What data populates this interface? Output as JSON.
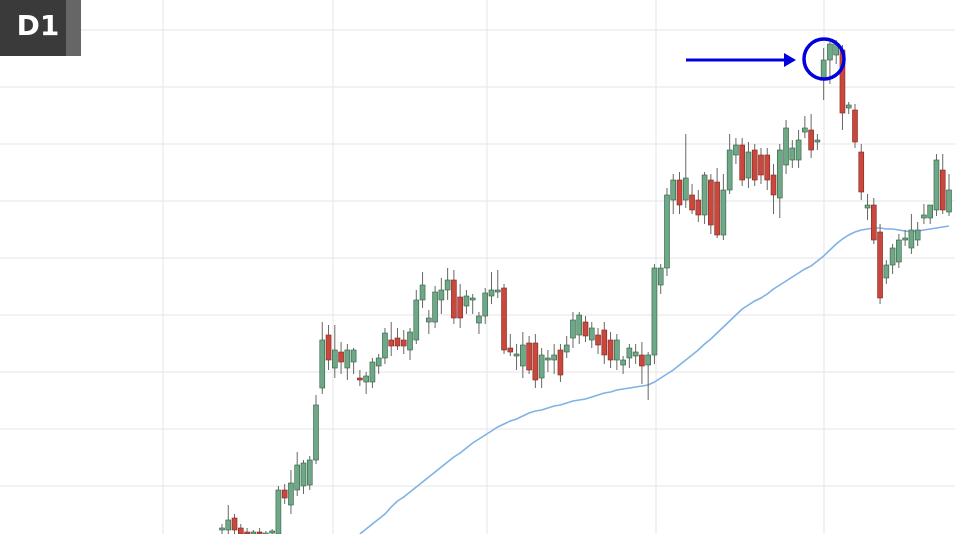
{
  "chart_data": {
    "type": "candlestick",
    "title": "D1",
    "ylim": [
      0,
      534
    ],
    "up_color": "#6fa886",
    "down_color": "#c9473c",
    "candles": [
      [
        4,
        10,
        0,
        6
      ],
      [
        4,
        29,
        0,
        14
      ],
      [
        16,
        20,
        0,
        4
      ],
      [
        6,
        10,
        0,
        0
      ],
      [
        2,
        6,
        0,
        0
      ],
      [
        0,
        4,
        0,
        2
      ],
      [
        2,
        6,
        0,
        0
      ],
      [
        0,
        3,
        0,
        1
      ],
      [
        1,
        5,
        0,
        3
      ],
      [
        0,
        48,
        0,
        44
      ],
      [
        44,
        50,
        30,
        36
      ],
      [
        29,
        64,
        20,
        51
      ],
      [
        44,
        82,
        38,
        69
      ],
      [
        48,
        74,
        40,
        71
      ],
      [
        49,
        78,
        44,
        74
      ],
      [
        74,
        139,
        70,
        129
      ],
      [
        146,
        212,
        140,
        194
      ],
      [
        199,
        209,
        164,
        174
      ],
      [
        166,
        209,
        156,
        184
      ],
      [
        182,
        192,
        160,
        172
      ],
      [
        166,
        190,
        154,
        184
      ],
      [
        172,
        186,
        160,
        184
      ],
      [
        156,
        164,
        148,
        154
      ],
      [
        152,
        162,
        140,
        158
      ],
      [
        152,
        176,
        146,
        172
      ],
      [
        168,
        180,
        160,
        176
      ],
      [
        176,
        206,
        170,
        201
      ],
      [
        194,
        212,
        178,
        188
      ],
      [
        196,
        206,
        184,
        188
      ],
      [
        194,
        204,
        180,
        188
      ],
      [
        184,
        206,
        174,
        202
      ],
      [
        194,
        244,
        190,
        234
      ],
      [
        234,
        262,
        226,
        249
      ],
      [
        212,
        224,
        200,
        216
      ],
      [
        212,
        248,
        206,
        242
      ],
      [
        234,
        256,
        220,
        244
      ],
      [
        244,
        266,
        234,
        254
      ],
      [
        254,
        264,
        210,
        216
      ],
      [
        237,
        250,
        206,
        216
      ],
      [
        228,
        244,
        220,
        238
      ],
      [
        234,
        240,
        220,
        236
      ],
      [
        211,
        222,
        200,
        218
      ],
      [
        218,
        246,
        210,
        241
      ],
      [
        238,
        262,
        230,
        244
      ],
      [
        242,
        264,
        236,
        244
      ],
      [
        246,
        250,
        180,
        184
      ],
      [
        186,
        200,
        178,
        182
      ],
      [
        178,
        190,
        164,
        180
      ],
      [
        168,
        202,
        156,
        189
      ],
      [
        191,
        198,
        160,
        164
      ],
      [
        191,
        200,
        146,
        154
      ],
      [
        156,
        186,
        146,
        179
      ],
      [
        174,
        184,
        162,
        176
      ],
      [
        174,
        190,
        160,
        179
      ],
      [
        184,
        190,
        152,
        159
      ],
      [
        182,
        198,
        176,
        189
      ],
      [
        196,
        222,
        186,
        214
      ],
      [
        199,
        222,
        190,
        219
      ],
      [
        212,
        218,
        192,
        198
      ],
      [
        194,
        212,
        186,
        206
      ],
      [
        199,
        206,
        180,
        189
      ],
      [
        204,
        212,
        170,
        179
      ],
      [
        194,
        202,
        166,
        174
      ],
      [
        174,
        200,
        164,
        194
      ],
      [
        169,
        178,
        160,
        174
      ],
      [
        176,
        190,
        166,
        186
      ],
      [
        178,
        190,
        170,
        182
      ],
      [
        179,
        192,
        150,
        168
      ],
      [
        169,
        182,
        134,
        179
      ],
      [
        179,
        270,
        170,
        266
      ],
      [
        249,
        270,
        240,
        266
      ],
      [
        266,
        346,
        258,
        339
      ],
      [
        334,
        360,
        320,
        354
      ],
      [
        354,
        362,
        320,
        329
      ],
      [
        334,
        400,
        326,
        356
      ],
      [
        339,
        350,
        320,
        324
      ],
      [
        334,
        344,
        312,
        319
      ],
      [
        319,
        362,
        310,
        359
      ],
      [
        354,
        360,
        300,
        309
      ],
      [
        352,
        366,
        296,
        299
      ],
      [
        299,
        360,
        294,
        344
      ],
      [
        344,
        400,
        340,
        384
      ],
      [
        379,
        396,
        370,
        389
      ],
      [
        389,
        396,
        348,
        354
      ],
      [
        356,
        392,
        346,
        382
      ],
      [
        384,
        390,
        348,
        354
      ],
      [
        379,
        386,
        350,
        359
      ],
      [
        379,
        386,
        344,
        354
      ],
      [
        359,
        370,
        320,
        339
      ],
      [
        336,
        390,
        316,
        384
      ],
      [
        369,
        414,
        360,
        406
      ],
      [
        374,
        394,
        366,
        386
      ],
      [
        374,
        404,
        366,
        394
      ],
      [
        402,
        418,
        396,
        406
      ],
      [
        404,
        420,
        376,
        384
      ],
      [
        392,
        400,
        384,
        394
      ],
      [
        456,
        486,
        434,
        474
      ],
      [
        474,
        492,
        450,
        490
      ],
      [
        479,
        494,
        470,
        490
      ],
      [
        484,
        489,
        404,
        421
      ],
      [
        426,
        432,
        420,
        429
      ],
      [
        424,
        430,
        386,
        392
      ],
      [
        382,
        390,
        334,
        342
      ],
      [
        326,
        340,
        314,
        329
      ],
      [
        329,
        336,
        290,
        294
      ],
      [
        302,
        310,
        230,
        236
      ],
      [
        256,
        274,
        250,
        269
      ],
      [
        269,
        290,
        260,
        286
      ],
      [
        272,
        300,
        266,
        294
      ],
      [
        294,
        304,
        288,
        296
      ],
      [
        286,
        320,
        280,
        304
      ],
      [
        294,
        312,
        288,
        304
      ],
      [
        316,
        330,
        310,
        319
      ],
      [
        316,
        328,
        310,
        329
      ],
      [
        324,
        380,
        318,
        374
      ],
      [
        364,
        380,
        320,
        324
      ],
      [
        322,
        360,
        318,
        344
      ]
    ],
    "ma": {
      "color": "#7fb2e5",
      "values": [
        null,
        null,
        null,
        null,
        null,
        null,
        null,
        null,
        null,
        null,
        null,
        null,
        null,
        null,
        null,
        null,
        null,
        null,
        null,
        null,
        null,
        null,
        0,
        5,
        10,
        15,
        20,
        27,
        33,
        37,
        42,
        47,
        52,
        57,
        62,
        67,
        72,
        77,
        81,
        86,
        91,
        95,
        99,
        103,
        107,
        110,
        113,
        115,
        118,
        121,
        123,
        124,
        126,
        128,
        129,
        131,
        133,
        134,
        135,
        137,
        139,
        141,
        142,
        144,
        145,
        146,
        147,
        148,
        149,
        152,
        156,
        160,
        164,
        169,
        174,
        179,
        184,
        190,
        195,
        201,
        207,
        213,
        219,
        225,
        229,
        233,
        236,
        240,
        245,
        249,
        253,
        257,
        261,
        265,
        268,
        273,
        278,
        284,
        290,
        295,
        299,
        302,
        304,
        305,
        306,
        306,
        305,
        305,
        304,
        303,
        302,
        303,
        304,
        305,
        306,
        307,
        308
      ]
    }
  }
}
